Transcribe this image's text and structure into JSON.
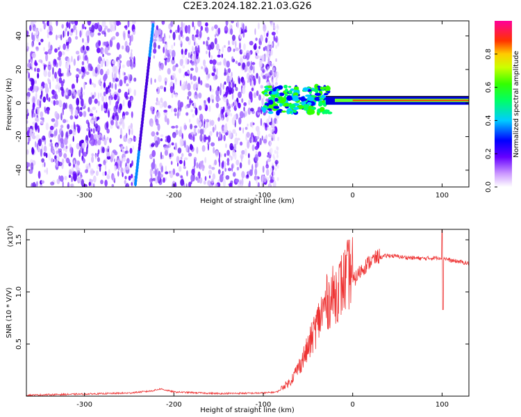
{
  "title": "C2E3.2024.182.21.03.G26",
  "spectrogram": {
    "type": "heatmap",
    "xlabel": "Height of straight line (km)",
    "ylabel": "Frequency (Hz)",
    "xlim": [
      -365,
      130
    ],
    "ylim": [
      -50,
      49
    ],
    "xticks": [
      -300,
      -200,
      -100,
      0,
      100
    ],
    "yticks": [
      -40,
      -20,
      0,
      20,
      40
    ],
    "xtick_labels": [
      "-300",
      "-200",
      "-100",
      "0",
      "100"
    ],
    "ytick_labels": [
      "-40",
      "-20",
      "0",
      "20",
      "40"
    ]
  },
  "colorbar": {
    "label": "Normalized spectral amplitude",
    "range": [
      0,
      1
    ],
    "ticks": [
      0.0,
      0.2,
      0.4,
      0.6,
      0.8
    ],
    "tick_labels": [
      "0.0",
      "0.2",
      "0.4",
      "0.6",
      "0.8"
    ]
  },
  "snr": {
    "type": "line",
    "xlabel": "Height of straight line (km)",
    "ylabel": "SNR (10 * V/V)",
    "exponent_label": "(x10",
    "exponent_power": "4",
    "exponent_close": ")",
    "xlim": [
      -365,
      130
    ],
    "ylim": [
      0,
      16000
    ],
    "xticks": [
      -300,
      -200,
      -100,
      0,
      100
    ],
    "xtick_labels": [
      "-300",
      "-200",
      "-100",
      "0",
      "100"
    ],
    "yticks": [
      5000,
      10000,
      15000
    ],
    "ytick_labels": [
      "0.5",
      "1.0",
      "1.5"
    ],
    "color": "#ee3333",
    "envelope": {
      "x": [
        -365,
        -300,
        -250,
        -225,
        -215,
        -200,
        -150,
        -100,
        -85,
        -70,
        -60,
        -50,
        -40,
        -30,
        -20,
        -10,
        0,
        10,
        20,
        30,
        40,
        60,
        80,
        100,
        110,
        120,
        130
      ],
      "y": [
        100,
        200,
        300,
        500,
        700,
        400,
        250,
        300,
        400,
        1200,
        2500,
        4000,
        6000,
        7800,
        8600,
        9600,
        10800,
        12000,
        12800,
        13300,
        13500,
        13300,
        13200,
        13300,
        13000,
        12900,
        12700
      ]
    }
  }
}
